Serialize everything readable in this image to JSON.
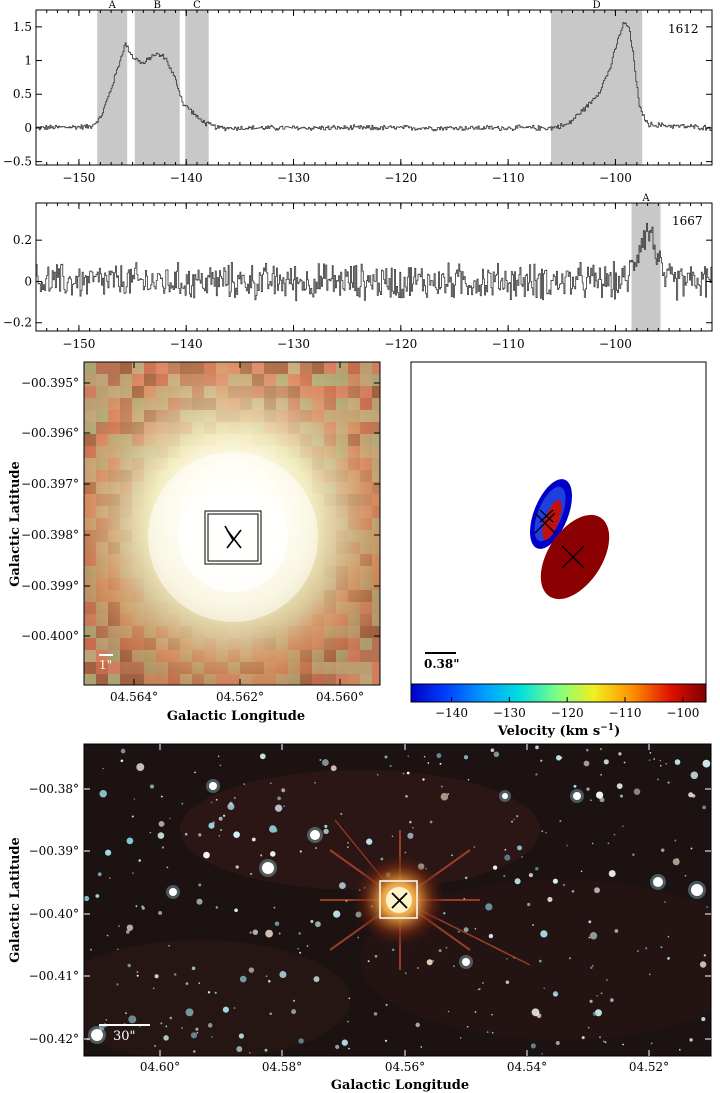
{
  "spectra": [
    {
      "id": "1612",
      "label": "1612",
      "xlim": [
        -154,
        -91
      ],
      "ylim": [
        -0.55,
        1.75
      ],
      "xticks": [
        -150,
        -140,
        -130,
        -120,
        -110,
        -100
      ],
      "yticks": [
        -0.5,
        0,
        0.5,
        1,
        1.5
      ],
      "ytick_labels": [
        "−0.5",
        "0",
        "0.5",
        "1",
        "1.5"
      ],
      "xtick_labels": [
        "−150",
        "−140",
        "−130",
        "−120",
        "−110",
        "−100"
      ],
      "regions": [
        {
          "name": "A",
          "range": [
            -148.3,
            -145.5
          ]
        },
        {
          "name": "B",
          "range": [
            -144.8,
            -140.6
          ]
        },
        {
          "name": "C",
          "range": [
            -140.1,
            -137.9
          ]
        },
        {
          "name": "D",
          "range": [
            -106.0,
            -97.5
          ]
        }
      ],
      "profile": [
        [
          -154,
          0
        ],
        [
          -149,
          0.02
        ],
        [
          -148,
          0.15
        ],
        [
          -147,
          0.6
        ],
        [
          -146.2,
          1.0
        ],
        [
          -145.7,
          1.25
        ],
        [
          -145,
          1.05
        ],
        [
          -144,
          0.95
        ],
        [
          -143,
          1.1
        ],
        [
          -142,
          1.05
        ],
        [
          -141,
          0.7
        ],
        [
          -140.3,
          0.35
        ],
        [
          -139.5,
          0.25
        ],
        [
          -139,
          0.15
        ],
        [
          -138,
          0.05
        ],
        [
          -137,
          0
        ],
        [
          -120,
          0
        ],
        [
          -106,
          0.0
        ],
        [
          -104.5,
          0.05
        ],
        [
          -103.5,
          0.2
        ],
        [
          -102.5,
          0.35
        ],
        [
          -101.5,
          0.55
        ],
        [
          -100.5,
          0.9
        ],
        [
          -100,
          1.2
        ],
        [
          -99.3,
          1.55
        ],
        [
          -98.8,
          1.5
        ],
        [
          -98.3,
          1.0
        ],
        [
          -97.8,
          0.3
        ],
        [
          -97,
          0.05
        ],
        [
          -91,
          0
        ]
      ],
      "noise": 0.03
    },
    {
      "id": "1667",
      "label": "1667",
      "xlim": [
        -154,
        -91
      ],
      "ylim": [
        -0.24,
        0.38
      ],
      "xticks": [
        -150,
        -140,
        -130,
        -120,
        -110,
        -100
      ],
      "yticks": [
        -0.2,
        0,
        0.2
      ],
      "ytick_labels": [
        "−0.2",
        "0",
        "0.2"
      ],
      "xtick_labels": [
        "−150",
        "−140",
        "−130",
        "−120",
        "−110",
        "−100"
      ],
      "regions": [
        {
          "name": "A",
          "range": [
            -98.5,
            -95.8
          ]
        }
      ],
      "profile": [
        [
          -154,
          0
        ],
        [
          -99,
          0
        ],
        [
          -98.3,
          0.1
        ],
        [
          -97.5,
          0.22
        ],
        [
          -96.8,
          0.25
        ],
        [
          -96,
          0.1
        ],
        [
          -95.5,
          0
        ],
        [
          -91,
          0
        ]
      ],
      "noise": 0.065
    }
  ],
  "zoom_image": {
    "ylabel": "Galactic Latitude",
    "xlabel": "Galactic Longitude",
    "yticks": [
      "−00.395°",
      "−00.396°",
      "−00.397°",
      "−00.398°",
      "−00.399°",
      "−00.400°"
    ],
    "xticks": [
      "04.564°",
      "04.562°",
      "04.560°"
    ],
    "scalebar": "1\""
  },
  "maser_map": {
    "scalebar": "0.38\"",
    "colorbar_label": "Velocity (km s",
    "colorbar_label_sup": "−1",
    "colorbar_label_end": ")",
    "colorbar_ticks": [
      "−140",
      "−130",
      "−120",
      "−110",
      "−100"
    ],
    "colorbar_range": [
      -147,
      -96
    ],
    "colorbar_tick_values": [
      -140,
      -130,
      -120,
      -110,
      -100
    ],
    "colors": [
      "#0000c8",
      "#0066ff",
      "#00ccff",
      "#66ffcc",
      "#ccff33",
      "#ffcc00",
      "#ff6600",
      "#cc0000",
      "#8b0000"
    ]
  },
  "wide_image": {
    "ylabel": "Galactic Latitude",
    "xlabel": "Galactic Longitude",
    "yticks": [
      "−00.38°",
      "−00.39°",
      "−00.40°",
      "−00.41°",
      "−00.42°"
    ],
    "xticks": [
      "04.60°",
      "04.58°",
      "04.56°",
      "04.54°",
      "04.52°"
    ],
    "scalebar": "30\""
  }
}
